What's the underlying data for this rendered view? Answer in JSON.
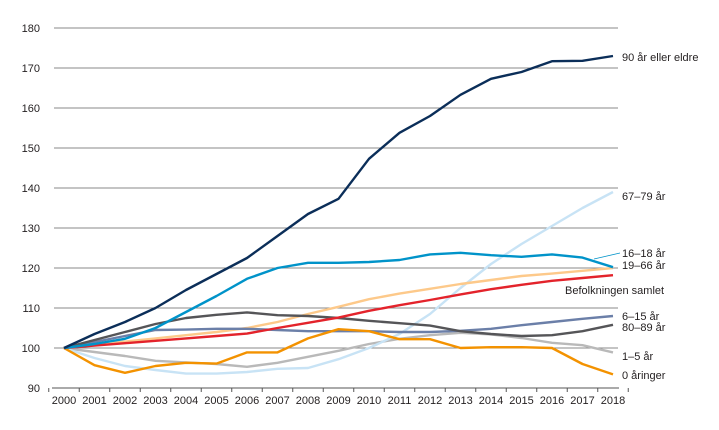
{
  "chart_data": {
    "type": "line",
    "title": "",
    "xlabel": "",
    "ylabel": "",
    "ylim": [
      90,
      180
    ],
    "yticks": [
      90,
      100,
      110,
      120,
      130,
      140,
      150,
      160,
      170,
      180
    ],
    "grid": true,
    "legend": "right (labels at line ends)",
    "x": [
      2000,
      2001,
      2002,
      2003,
      2004,
      2005,
      2006,
      2007,
      2008,
      2009,
      2010,
      2011,
      2012,
      2013,
      2014,
      2015,
      2016,
      2017,
      2018
    ],
    "series": [
      {
        "name": "1–5 år",
        "color": "#b9b9b9",
        "values": [
          100,
          99,
          98,
          96.8,
          96.4,
          96,
          95.3,
          96.3,
          97.8,
          99.3,
          101,
          102.3,
          103.2,
          103.8,
          103.4,
          102.5,
          101.3,
          100.7,
          98.9
        ]
      },
      {
        "name": "67–79 år",
        "color": "#c8e3f5",
        "values": [
          100,
          97.5,
          95.5,
          94.5,
          93.6,
          93.6,
          94,
          94.8,
          95,
          97.2,
          100,
          103.5,
          108.5,
          115,
          121,
          126,
          130.5,
          135,
          139
        ]
      },
      {
        "name": "19–66 år",
        "color": "#fdc98a",
        "values": [
          100,
          100.8,
          101.6,
          102.4,
          103.2,
          104,
          105,
          106.5,
          108.5,
          110.3,
          112.2,
          113.6,
          114.8,
          116,
          117,
          118,
          118.6,
          119.3,
          120
        ]
      },
      {
        "name": "6–15 år",
        "color": "#6b7fa8",
        "values": [
          100,
          101.5,
          103,
          104.5,
          104.6,
          104.8,
          104.8,
          104.5,
          104.2,
          104.2,
          104.2,
          104,
          104,
          104.3,
          104.8,
          105.7,
          106.5,
          107.3,
          108
        ]
      },
      {
        "name": "80–89 år",
        "color": "#555558",
        "values": [
          100,
          102,
          104,
          106,
          107.5,
          108.3,
          108.9,
          108.2,
          108,
          107.5,
          106.8,
          106.2,
          105.6,
          104.2,
          103.5,
          103,
          103.2,
          104.2,
          105.8
        ]
      },
      {
        "name": "0 åringer",
        "color": "#f39200",
        "values": [
          100,
          95.7,
          93.8,
          95.5,
          96.3,
          96.1,
          98.9,
          98.9,
          102.4,
          104.7,
          104.2,
          102.2,
          102.2,
          100,
          100.2,
          100.2,
          100,
          96,
          93.4
        ]
      },
      {
        "name": "Befolkningen samlet",
        "color": "#e3232b",
        "values": [
          100,
          100.6,
          101.2,
          101.8,
          102.4,
          103,
          103.6,
          105,
          106.3,
          107.6,
          109.3,
          110.7,
          112,
          113.4,
          114.7,
          115.8,
          116.8,
          117.5,
          118.2
        ]
      },
      {
        "name": "16–18 år",
        "color": "#0093c9",
        "values": [
          100,
          101,
          102.3,
          105,
          109,
          113,
          117.3,
          120,
          121.3,
          121.3,
          121.5,
          122,
          123.4,
          123.8,
          123.2,
          122.8,
          123.4,
          122.6,
          120.2
        ]
      },
      {
        "name": "90 år eller eldre",
        "color": "#0b2e59",
        "values": [
          100,
          103.5,
          106.5,
          110,
          114.5,
          118.5,
          122.5,
          128,
          133.5,
          137.3,
          147.3,
          153.8,
          158,
          163.3,
          167.3,
          169,
          171.7,
          171.8,
          173
        ]
      }
    ]
  }
}
